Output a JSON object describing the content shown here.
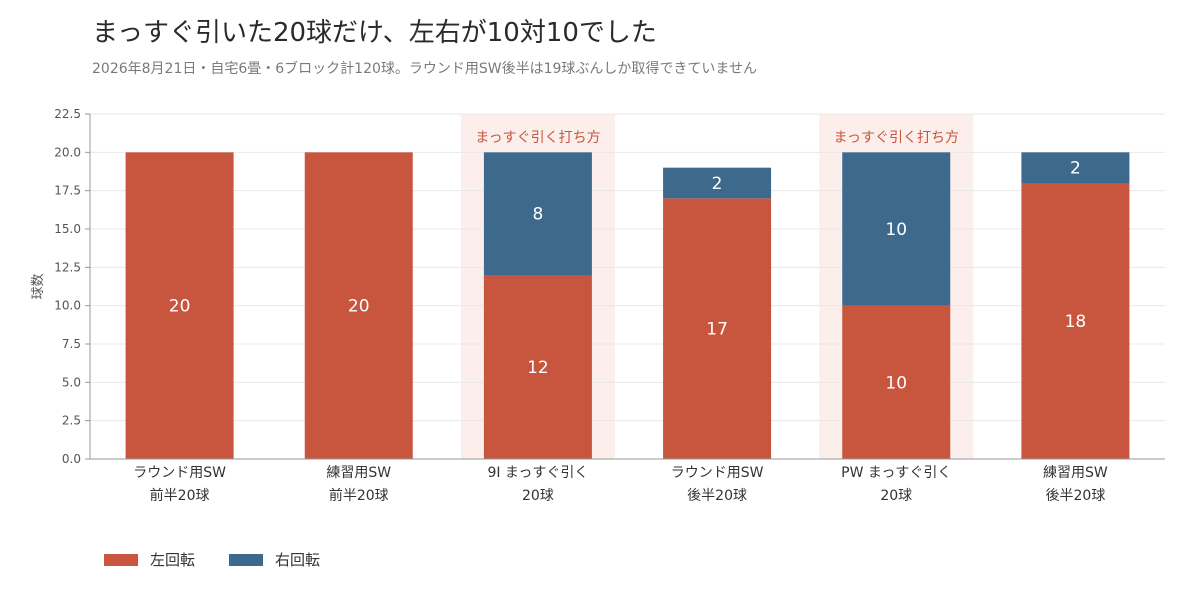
{
  "header": {
    "title": "まっすぐ引いた20球だけ、左右が10対10でした",
    "subtitle": "2026年8月21日・自宅6畳・6ブロック計120球。ラウンド用SW後半は19球ぶんしか取得できていません"
  },
  "colors": {
    "left": "#c8553d",
    "right": "#3d6a8c",
    "highlight": "#fbeeeb",
    "highlight_text": "#c8553d",
    "grid": "#e8e8e8",
    "axis": "#999999"
  },
  "chart_data": {
    "type": "bar",
    "stacked": true,
    "ylabel": "球数",
    "ylim": [
      0,
      22.5
    ],
    "yticks": [
      "0.0",
      "2.5",
      "5.0",
      "7.5",
      "10.0",
      "12.5",
      "15.0",
      "17.5",
      "20.0",
      "22.5"
    ],
    "categories": [
      [
        "ラウンド用SW",
        "前半20球"
      ],
      [
        "練習用SW",
        "前半20球"
      ],
      [
        "9I まっすぐ引く",
        "20球"
      ],
      [
        "ラウンド用SW",
        "後半20球"
      ],
      [
        "PW まっすぐ引く",
        "20球"
      ],
      [
        "練習用SW",
        "後半20球"
      ]
    ],
    "series": [
      {
        "name": "左回転",
        "values": [
          20,
          20,
          12,
          17,
          10,
          18
        ]
      },
      {
        "name": "右回転",
        "values": [
          0,
          0,
          8,
          2,
          10,
          2
        ]
      }
    ],
    "highlights": [
      {
        "category_index": 2,
        "label": "まっすぐ引く打ち方"
      },
      {
        "category_index": 4,
        "label": "まっすぐ引く打ち方"
      }
    ],
    "grid": true,
    "legend_position": "bottom-left"
  }
}
